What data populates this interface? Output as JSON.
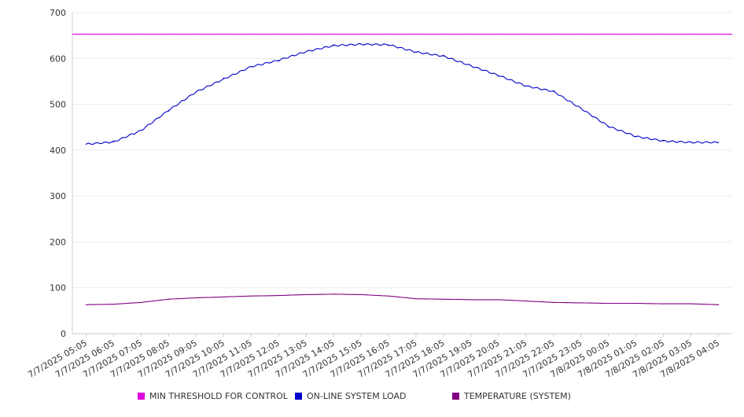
{
  "chart_data": {
    "type": "line",
    "title": "",
    "xlabel": "",
    "ylabel": "",
    "ylim": [
      0,
      700
    ],
    "yticks": [
      0,
      100,
      200,
      300,
      400,
      500,
      600,
      700
    ],
    "grid": true,
    "legend_position": "bottom",
    "x": [
      "7/7/2025 05:05",
      "7/7/2025 06:05",
      "7/7/2025 07:05",
      "7/7/2025 08:05",
      "7/7/2025 09:05",
      "7/7/2025 10:05",
      "7/7/2025 11:05",
      "7/7/2025 12:05",
      "7/7/2025 13:05",
      "7/7/2025 14:05",
      "7/7/2025 15:05",
      "7/7/2025 16:05",
      "7/7/2025 17:05",
      "7/7/2025 18:05",
      "7/7/2025 19:05",
      "7/7/2025 20:05",
      "7/7/2025 21:05",
      "7/7/2025 22:05",
      "7/7/2025 23:05",
      "7/8/2025 00:05",
      "7/8/2025 01:05",
      "7/8/2025 02:05",
      "7/8/2025 03:05",
      "7/8/2025 04:05"
    ],
    "series": [
      {
        "name": "MIN THRESHOLD FOR CONTROL",
        "color": "#e100e1",
        "values": [
          653,
          653,
          653,
          653,
          653,
          653,
          653,
          653,
          653,
          653,
          653,
          653,
          653,
          653,
          653,
          653,
          653,
          653,
          653,
          653,
          653,
          653,
          653,
          653
        ]
      },
      {
        "name": "ON-LINE SYSTEM LOAD",
        "color": "#0000cc",
        "values": [
          413,
          418,
          443,
          487,
          527,
          555,
          582,
          596,
          615,
          628,
          631,
          630,
          614,
          605,
          584,
          563,
          540,
          528,
          491,
          452,
          430,
          420,
          417,
          417
        ]
      },
      {
        "name": "TEMPERATURE (SYSTEM)",
        "color": "#800080",
        "values": [
          63,
          64,
          68,
          75,
          78,
          80,
          82,
          83,
          85,
          86,
          85,
          82,
          76,
          75,
          74,
          74,
          71,
          68,
          67,
          66,
          66,
          65,
          65,
          63
        ]
      }
    ]
  }
}
